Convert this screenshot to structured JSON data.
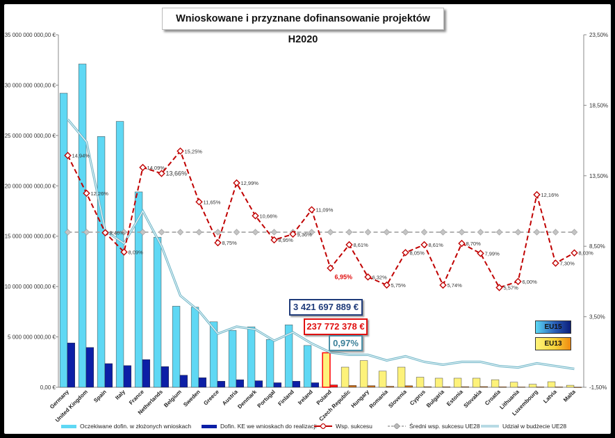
{
  "chart_data": {
    "type": "bar",
    "title": "Wnioskowane i przyznane dofinansowanie projektów H2020",
    "categories": [
      "Germany",
      "United Kingdom",
      "Spain",
      "Italy",
      "France",
      "Netherlands",
      "Belgium",
      "Sweden",
      "Greece",
      "Austria",
      "Denmark",
      "Portugal",
      "Finland",
      "Ireland",
      "Poland",
      "Czech Republic",
      "Hungary",
      "Romania",
      "Slovenia",
      "Cyprus",
      "Bulgaria",
      "Estonia",
      "Slovakia",
      "Croatia",
      "Lithuania",
      "Luxembourg",
      "Latvia",
      "Malta"
    ],
    "y_left": {
      "ticks": [
        "0,00 €",
        "5 000 000 000,00 €",
        "10 000 000 000,00 €",
        "15 000 000 000,00 €",
        "20 000 000 000,00 €",
        "25 000 000 000,00 €",
        "30 000 000 000,00 €",
        "35 000 000 000,00 €"
      ],
      "min": 0,
      "max": 35000000000
    },
    "y_right": {
      "ticks": [
        "-1,50%",
        "3,50%",
        "8,50%",
        "13,50%",
        "18,50%",
        "23,50%"
      ],
      "min": -1.5,
      "max": 23.5
    },
    "series": [
      {
        "name": "Oczekiwane dofin. w złożonych wnioskach",
        "axis": "left",
        "type": "bar",
        "values": [
          29200000000,
          32100000000,
          24900000000,
          26400000000,
          19400000000,
          14900000000,
          8050000000,
          7950000000,
          6500000000,
          5650000000,
          6000000000,
          4750000000,
          6200000000,
          4150000000,
          3421697889,
          2000000000,
          2650000000,
          1600000000,
          2000000000,
          1000000000,
          900000000,
          900000000,
          900000000,
          750000000,
          500000000,
          300000000,
          550000000,
          200000000
        ]
      },
      {
        "name": "Dofin. KE we wnioskach do realizacji",
        "axis": "left",
        "type": "bar",
        "values": [
          4400000000,
          3950000000,
          2350000000,
          2150000000,
          2750000000,
          2050000000,
          1200000000,
          950000000,
          600000000,
          750000000,
          650000000,
          450000000,
          600000000,
          450000000,
          237772378,
          180000000,
          160000000,
          100000000,
          150000000,
          60000000,
          50000000,
          60000000,
          70000000,
          45000000,
          35000000,
          40000000,
          40000000,
          15000000
        ]
      },
      {
        "name": "Wsp. sukcesu",
        "axis": "right",
        "type": "line",
        "values": [
          14.94,
          12.26,
          9.46,
          8.09,
          14.09,
          13.66,
          15.25,
          11.65,
          8.75,
          12.99,
          10.66,
          8.95,
          9.36,
          11.09,
          6.95,
          8.61,
          6.32,
          5.75,
          8.05,
          8.61,
          5.74,
          8.7,
          7.99,
          5.57,
          6.0,
          12.16,
          7.3,
          8.03
        ],
        "labels": [
          "14,94%",
          "12,26%",
          "9,46%",
          "8,09%",
          "14,09%",
          "13,66%",
          "15,25%",
          "11,65%",
          "8,75%",
          "12,99%",
          "10,66%",
          "8,95%",
          "9,36%",
          "11,09%",
          "6,95%",
          "8,61%",
          "6,32%",
          "5,75%",
          "8,05%",
          "8,61%",
          "5,74%",
          "8,70%",
          "7,99%",
          "5,57%",
          "6,00%",
          "12,16%",
          "7,30%",
          "8,03%"
        ]
      },
      {
        "name": "Średni wsp. sukcesu UE28",
        "axis": "right",
        "type": "line",
        "value": 9.5
      },
      {
        "name": "Udział w budżecie UE28",
        "axis": "right",
        "type": "line",
        "values": [
          17.5,
          15.9,
          9.6,
          8.7,
          11.0,
          8.5,
          5.0,
          3.9,
          2.3,
          2.8,
          2.6,
          1.8,
          2.4,
          1.6,
          0.97,
          0.8,
          0.8,
          0.4,
          0.7,
          0.3,
          0.1,
          0.3,
          0.3,
          0.0,
          -0.1,
          0.2,
          0.0,
          -0.2
        ]
      }
    ],
    "callouts": {
      "requested": "3 421 697 889 €",
      "granted": "237 772 378 €",
      "share": "0,97%"
    },
    "badges": {
      "eu15": "EU15",
      "eu13": "EU13"
    },
    "colors": {
      "bar_cyan": "#5fd8f4",
      "bar_yellow": "#fdf27a",
      "bar_navy": "#0c1fa6",
      "bar_red": "#ff1010",
      "line_red": "#c00000",
      "line_grey": "#a0a0a0",
      "line_teal": "#6fb6c8"
    }
  },
  "legend": [
    "Oczekiwane dofin. w złożonych wnioskach",
    "Dofin. KE we wnioskach do realizacji",
    "Wsp. sukcesu",
    "Średni wsp. sukcesu UE28",
    "Udział w budżecie UE28"
  ]
}
